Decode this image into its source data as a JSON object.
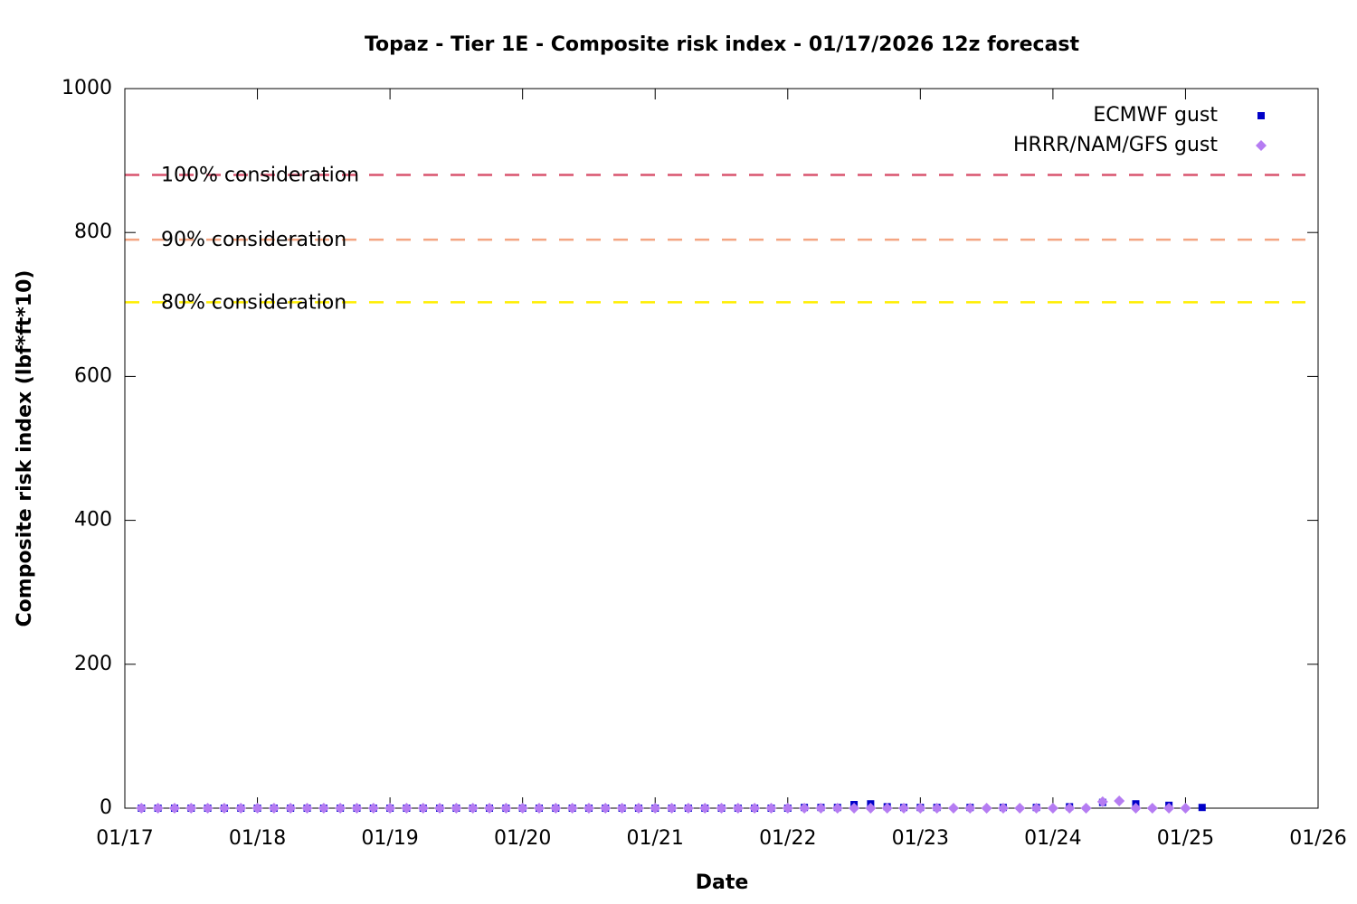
{
  "chart_data": {
    "type": "scatter",
    "title": "Topaz - Tier 1E - Composite risk index - 01/17/2026 12z forecast",
    "x_label": "Date",
    "y_label": "Composite risk index (lbf*ft*10)",
    "xlim": [
      0,
      9
    ],
    "xticks": [
      {
        "value": 0,
        "label": "01/17"
      },
      {
        "value": 1,
        "label": "01/18"
      },
      {
        "value": 2,
        "label": "01/19"
      },
      {
        "value": 3,
        "label": "01/20"
      },
      {
        "value": 4,
        "label": "01/21"
      },
      {
        "value": 5,
        "label": "01/22"
      },
      {
        "value": 6,
        "label": "01/23"
      },
      {
        "value": 7,
        "label": "01/24"
      },
      {
        "value": 8,
        "label": "01/25"
      },
      {
        "value": 9,
        "label": "01/26"
      }
    ],
    "ylim": [
      0,
      1000
    ],
    "yticks": [
      0,
      200,
      400,
      600,
      800,
      1000
    ],
    "grid": false,
    "legend": "top-right",
    "thresholds": [
      {
        "label": "100% consideration",
        "value": 880,
        "color": "#d9546e"
      },
      {
        "label": "90% consideration",
        "value": 790,
        "color": "#f4a582"
      },
      {
        "label": "80% consideration",
        "value": 703,
        "color": "#ffee00"
      }
    ],
    "series": [
      {
        "name": "ECMWF gust",
        "color": "#0000c8",
        "marker": "square",
        "x": [
          0.125,
          0.25,
          0.375,
          0.5,
          0.625,
          0.75,
          0.875,
          1,
          1.125,
          1.25,
          1.375,
          1.5,
          1.625,
          1.75,
          1.875,
          2,
          2.125,
          2.25,
          2.375,
          2.5,
          2.625,
          2.75,
          2.875,
          3,
          3.125,
          3.25,
          3.375,
          3.5,
          3.625,
          3.75,
          3.875,
          4,
          4.125,
          4.25,
          4.375,
          4.5,
          4.625,
          4.75,
          4.875,
          5,
          5.125,
          5.25,
          5.375,
          5.5,
          5.625,
          5.75,
          5.875,
          6,
          6.125,
          6.375,
          6.625,
          6.875,
          7.125,
          7.375,
          7.625,
          7.875,
          8.125
        ],
        "values": [
          0,
          0,
          0,
          0,
          0,
          0,
          0,
          0,
          0,
          0,
          0,
          0,
          0,
          0,
          0,
          0,
          0,
          0,
          0,
          0,
          0,
          0,
          0,
          0,
          0,
          0,
          0,
          0,
          0,
          0,
          0,
          0,
          0,
          0,
          0,
          0,
          0,
          0,
          0,
          0,
          1,
          1,
          1,
          5,
          6,
          2,
          1,
          1,
          1,
          1,
          1,
          1,
          2,
          8,
          6,
          4,
          1
        ]
      },
      {
        "name": "HRRR/NAM/GFS gust",
        "color": "#b57cf2",
        "marker": "diamond",
        "x": [
          0.125,
          0.25,
          0.375,
          0.5,
          0.625,
          0.75,
          0.875,
          1,
          1.125,
          1.25,
          1.375,
          1.5,
          1.625,
          1.75,
          1.875,
          2,
          2.125,
          2.25,
          2.375,
          2.5,
          2.625,
          2.75,
          2.875,
          3,
          3.125,
          3.25,
          3.375,
          3.5,
          3.625,
          3.75,
          3.875,
          4,
          4.125,
          4.25,
          4.375,
          4.5,
          4.625,
          4.75,
          4.875,
          5,
          5.125,
          5.25,
          5.375,
          5.5,
          5.625,
          5.75,
          5.875,
          6,
          6.125,
          6.25,
          6.375,
          6.5,
          6.625,
          6.75,
          6.875,
          7,
          7.125,
          7.25,
          7.375,
          7.5,
          7.625,
          7.75,
          7.875,
          8
        ],
        "values": [
          0,
          0,
          0,
          0,
          0,
          0,
          0,
          0,
          0,
          0,
          0,
          0,
          0,
          0,
          0,
          0,
          0,
          0,
          0,
          0,
          0,
          0,
          0,
          0,
          0,
          0,
          0,
          0,
          0,
          0,
          0,
          0,
          0,
          0,
          0,
          0,
          0,
          0,
          0,
          0,
          0,
          0,
          0,
          0,
          0,
          0,
          0,
          0,
          0,
          0,
          0,
          0,
          0,
          0,
          0,
          0,
          0,
          0,
          9,
          10,
          0,
          0,
          0,
          0
        ]
      }
    ]
  }
}
